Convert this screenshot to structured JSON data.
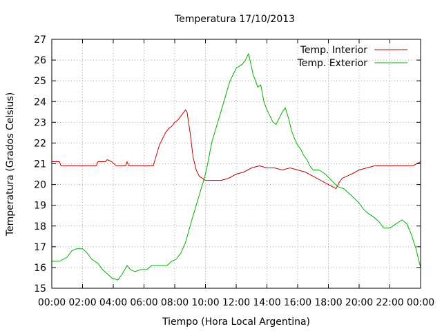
{
  "chart_data": {
    "type": "line",
    "title": "Temperatura 17/10/2013",
    "xlabel": "Tiempo (Hora Local Argentina)",
    "ylabel": "Temperatura (Grados Celsius)",
    "xlim": [
      0,
      24
    ],
    "ylim": [
      15,
      27
    ],
    "x_ticks": [
      "00:00",
      "02:00",
      "04:00",
      "06:00",
      "08:00",
      "10:00",
      "12:00",
      "14:00",
      "16:00",
      "18:00",
      "20:00",
      "22:00",
      "00:00"
    ],
    "y_ticks": [
      15,
      16,
      17,
      18,
      19,
      20,
      21,
      22,
      23,
      24,
      25,
      26,
      27
    ],
    "grid": true,
    "legend_position": "top-right",
    "series": [
      {
        "name": "Temp. Interior",
        "color": "#c00000",
        "points": [
          [
            0,
            21.1
          ],
          [
            0.5,
            21.1
          ],
          [
            0.6,
            20.9
          ],
          [
            1,
            20.9
          ],
          [
            2,
            20.9
          ],
          [
            2.9,
            20.9
          ],
          [
            3,
            21.1
          ],
          [
            3.5,
            21.1
          ],
          [
            3.6,
            21.2
          ],
          [
            3.9,
            21.1
          ],
          [
            4.2,
            20.9
          ],
          [
            4.8,
            20.9
          ],
          [
            4.9,
            21.1
          ],
          [
            5,
            20.9
          ],
          [
            6,
            20.9
          ],
          [
            6.6,
            20.9
          ],
          [
            6.8,
            21.4
          ],
          [
            7,
            21.9
          ],
          [
            7.2,
            22.2
          ],
          [
            7.4,
            22.5
          ],
          [
            7.6,
            22.7
          ],
          [
            7.8,
            22.8
          ],
          [
            8,
            23
          ],
          [
            8.2,
            23.1
          ],
          [
            8.4,
            23.3
          ],
          [
            8.6,
            23.5
          ],
          [
            8.7,
            23.6
          ],
          [
            8.8,
            23.5
          ],
          [
            9,
            22.5
          ],
          [
            9.2,
            21.3
          ],
          [
            9.4,
            20.7
          ],
          [
            9.6,
            20.4
          ],
          [
            9.8,
            20.3
          ],
          [
            10,
            20.2
          ],
          [
            10.5,
            20.2
          ],
          [
            11,
            20.2
          ],
          [
            11.5,
            20.3
          ],
          [
            12,
            20.5
          ],
          [
            12.5,
            20.6
          ],
          [
            13,
            20.8
          ],
          [
            13.5,
            20.9
          ],
          [
            14,
            20.8
          ],
          [
            14.5,
            20.8
          ],
          [
            15,
            20.7
          ],
          [
            15.5,
            20.8
          ],
          [
            16,
            20.7
          ],
          [
            16.5,
            20.6
          ],
          [
            17,
            20.4
          ],
          [
            17.5,
            20.2
          ],
          [
            18,
            20
          ],
          [
            18.5,
            19.8
          ],
          [
            18.7,
            20.1
          ],
          [
            18.9,
            20.3
          ],
          [
            19.2,
            20.4
          ],
          [
            19.5,
            20.5
          ],
          [
            20,
            20.7
          ],
          [
            20.5,
            20.8
          ],
          [
            21,
            20.9
          ],
          [
            21.5,
            20.9
          ],
          [
            22,
            20.9
          ],
          [
            22.5,
            20.9
          ],
          [
            23,
            20.9
          ],
          [
            23.5,
            20.9
          ],
          [
            24,
            21.1
          ]
        ]
      },
      {
        "name": "Temp. Exterior",
        "color": "#00b000",
        "points": [
          [
            0,
            16.3
          ],
          [
            0.5,
            16.3
          ],
          [
            1,
            16.5
          ],
          [
            1.3,
            16.8
          ],
          [
            1.6,
            16.9
          ],
          [
            2,
            16.9
          ],
          [
            2.3,
            16.7
          ],
          [
            2.6,
            16.4
          ],
          [
            3,
            16.2
          ],
          [
            3.3,
            15.9
          ],
          [
            3.6,
            15.7
          ],
          [
            3.9,
            15.5
          ],
          [
            4.3,
            15.4
          ],
          [
            4.6,
            15.7
          ],
          [
            4.9,
            16.1
          ],
          [
            5.1,
            15.9
          ],
          [
            5.4,
            15.8
          ],
          [
            5.8,
            15.9
          ],
          [
            6.2,
            15.9
          ],
          [
            6.5,
            16.1
          ],
          [
            7,
            16.1
          ],
          [
            7.5,
            16.1
          ],
          [
            7.8,
            16.3
          ],
          [
            8.1,
            16.4
          ],
          [
            8.4,
            16.7
          ],
          [
            8.7,
            17.2
          ],
          [
            9,
            18
          ],
          [
            9.2,
            18.5
          ],
          [
            9.4,
            19
          ],
          [
            9.6,
            19.5
          ],
          [
            9.8,
            20
          ],
          [
            10,
            20.5
          ],
          [
            10.2,
            21.2
          ],
          [
            10.4,
            22
          ],
          [
            10.6,
            22.5
          ],
          [
            10.8,
            23
          ],
          [
            11,
            23.5
          ],
          [
            11.2,
            24
          ],
          [
            11.4,
            24.5
          ],
          [
            11.6,
            25
          ],
          [
            11.8,
            25.3
          ],
          [
            12,
            25.6
          ],
          [
            12.2,
            25.7
          ],
          [
            12.4,
            25.8
          ],
          [
            12.6,
            26
          ],
          [
            12.8,
            26.3
          ],
          [
            12.9,
            26
          ],
          [
            13.1,
            25.3
          ],
          [
            13.4,
            24.7
          ],
          [
            13.6,
            24.8
          ],
          [
            13.8,
            24
          ],
          [
            14,
            23.6
          ],
          [
            14.2,
            23.3
          ],
          [
            14.4,
            23
          ],
          [
            14.6,
            22.9
          ],
          [
            14.8,
            23.2
          ],
          [
            15,
            23.5
          ],
          [
            15.2,
            23.7
          ],
          [
            15.4,
            23.2
          ],
          [
            15.6,
            22.6
          ],
          [
            15.8,
            22.2
          ],
          [
            16,
            21.9
          ],
          [
            16.2,
            21.7
          ],
          [
            16.4,
            21.4
          ],
          [
            16.6,
            21.2
          ],
          [
            16.8,
            20.9
          ],
          [
            17,
            20.7
          ],
          [
            17.4,
            20.7
          ],
          [
            17.8,
            20.5
          ],
          [
            18.2,
            20.2
          ],
          [
            18.6,
            19.9
          ],
          [
            19,
            19.8
          ],
          [
            19.3,
            19.6
          ],
          [
            19.6,
            19.4
          ],
          [
            20,
            19.1
          ],
          [
            20.3,
            18.8
          ],
          [
            20.6,
            18.6
          ],
          [
            21,
            18.4
          ],
          [
            21.3,
            18.2
          ],
          [
            21.6,
            17.9
          ],
          [
            22,
            17.9
          ],
          [
            22.4,
            18.1
          ],
          [
            22.8,
            18.3
          ],
          [
            23.1,
            18.1
          ],
          [
            23.4,
            17.6
          ],
          [
            23.7,
            16.9
          ],
          [
            24,
            16
          ]
        ]
      }
    ]
  }
}
